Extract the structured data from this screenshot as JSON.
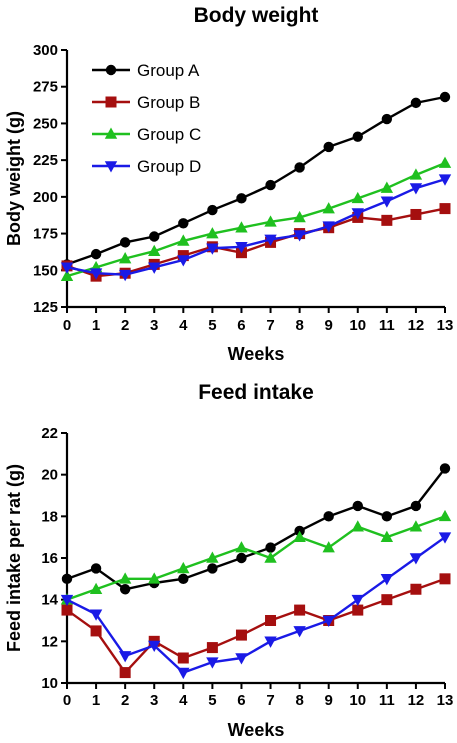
{
  "chart_data": [
    {
      "type": "line",
      "title": "Body weight",
      "xlabel": "Weeks",
      "ylabel": "Body weight (g)",
      "x": [
        0,
        1,
        2,
        3,
        4,
        5,
        6,
        7,
        8,
        9,
        10,
        11,
        12,
        13
      ],
      "xlim": [
        0,
        13
      ],
      "ylim": [
        125,
        300
      ],
      "yticks": [
        125,
        150,
        175,
        200,
        225,
        250,
        275,
        300
      ],
      "legend_position": "top-left",
      "grid": false,
      "series": [
        {
          "name": "Group A",
          "color": "#000000",
          "marker": "circle",
          "values": [
            154,
            161,
            169,
            173,
            182,
            191,
            199,
            208,
            220,
            234,
            241,
            253,
            264,
            268
          ]
        },
        {
          "name": "Group B",
          "color": "#a50f0f",
          "marker": "square",
          "values": [
            153,
            146,
            148,
            154,
            160,
            166,
            162,
            169,
            175,
            179,
            186,
            184,
            188,
            192
          ]
        },
        {
          "name": "Group C",
          "color": "#1fc01f",
          "marker": "triangle-up",
          "values": [
            146,
            152,
            158,
            163,
            170,
            175,
            179,
            183,
            186,
            192,
            199,
            206,
            215,
            223
          ]
        },
        {
          "name": "Group D",
          "color": "#1a1ae6",
          "marker": "triangle-down",
          "values": [
            152,
            148,
            147,
            152,
            157,
            165,
            166,
            171,
            174,
            180,
            189,
            197,
            206,
            212
          ]
        }
      ]
    },
    {
      "type": "line",
      "title": "Feed intake",
      "xlabel": "Weeks",
      "ylabel": "Feed intake per rat (g)",
      "x": [
        0,
        1,
        2,
        3,
        4,
        5,
        6,
        7,
        8,
        9,
        10,
        11,
        12,
        13
      ],
      "xlim": [
        0,
        13
      ],
      "ylim": [
        10,
        22
      ],
      "yticks": [
        10,
        12,
        14,
        16,
        18,
        20,
        22
      ],
      "grid": false,
      "series": [
        {
          "name": "Group A",
          "color": "#000000",
          "marker": "circle",
          "values": [
            15.0,
            15.5,
            14.5,
            14.8,
            15.0,
            15.5,
            16.0,
            16.5,
            17.3,
            18.0,
            18.5,
            18.0,
            18.5,
            20.3
          ]
        },
        {
          "name": "Group B",
          "color": "#a50f0f",
          "marker": "square",
          "values": [
            13.5,
            12.5,
            10.5,
            12.0,
            11.2,
            11.7,
            12.3,
            13.0,
            13.5,
            13.0,
            13.5,
            14.0,
            14.5,
            15.0
          ]
        },
        {
          "name": "Group C",
          "color": "#1fc01f",
          "marker": "triangle-up",
          "values": [
            14.0,
            14.5,
            15.0,
            15.0,
            15.5,
            16.0,
            16.5,
            16.0,
            17.0,
            16.5,
            17.5,
            17.0,
            17.5,
            18.0
          ]
        },
        {
          "name": "Group D",
          "color": "#1a1ae6",
          "marker": "triangle-down",
          "values": [
            14.0,
            13.3,
            11.3,
            11.8,
            10.5,
            11.0,
            11.2,
            12.0,
            12.5,
            13.0,
            14.0,
            15.0,
            16.0,
            17.0
          ]
        }
      ]
    }
  ]
}
